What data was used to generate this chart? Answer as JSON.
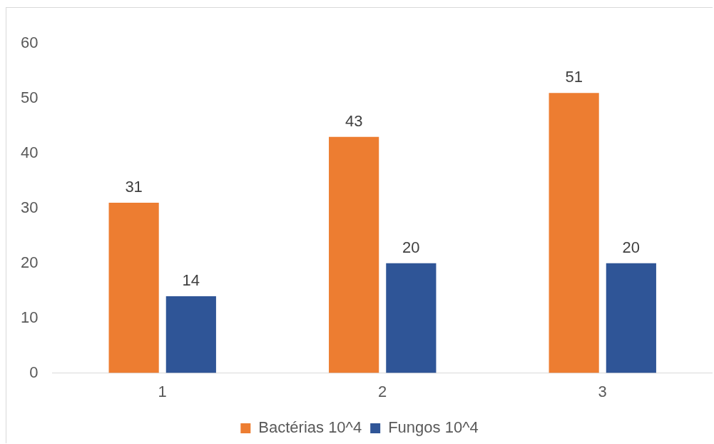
{
  "chart_data": {
    "type": "bar",
    "categories": [
      "1",
      "2",
      "3"
    ],
    "series": [
      {
        "name": "Bactérias 10^4",
        "color": "#ed7d31",
        "values": [
          31,
          43,
          51
        ]
      },
      {
        "name": "Fungos 10^4",
        "color": "#2f5597",
        "values": [
          14,
          20,
          20
        ]
      }
    ],
    "ylim": [
      0,
      60
    ],
    "yticks": [
      0,
      10,
      20,
      30,
      40,
      50,
      60
    ],
    "grid": false,
    "legend": "bottom",
    "data_labels": true
  }
}
